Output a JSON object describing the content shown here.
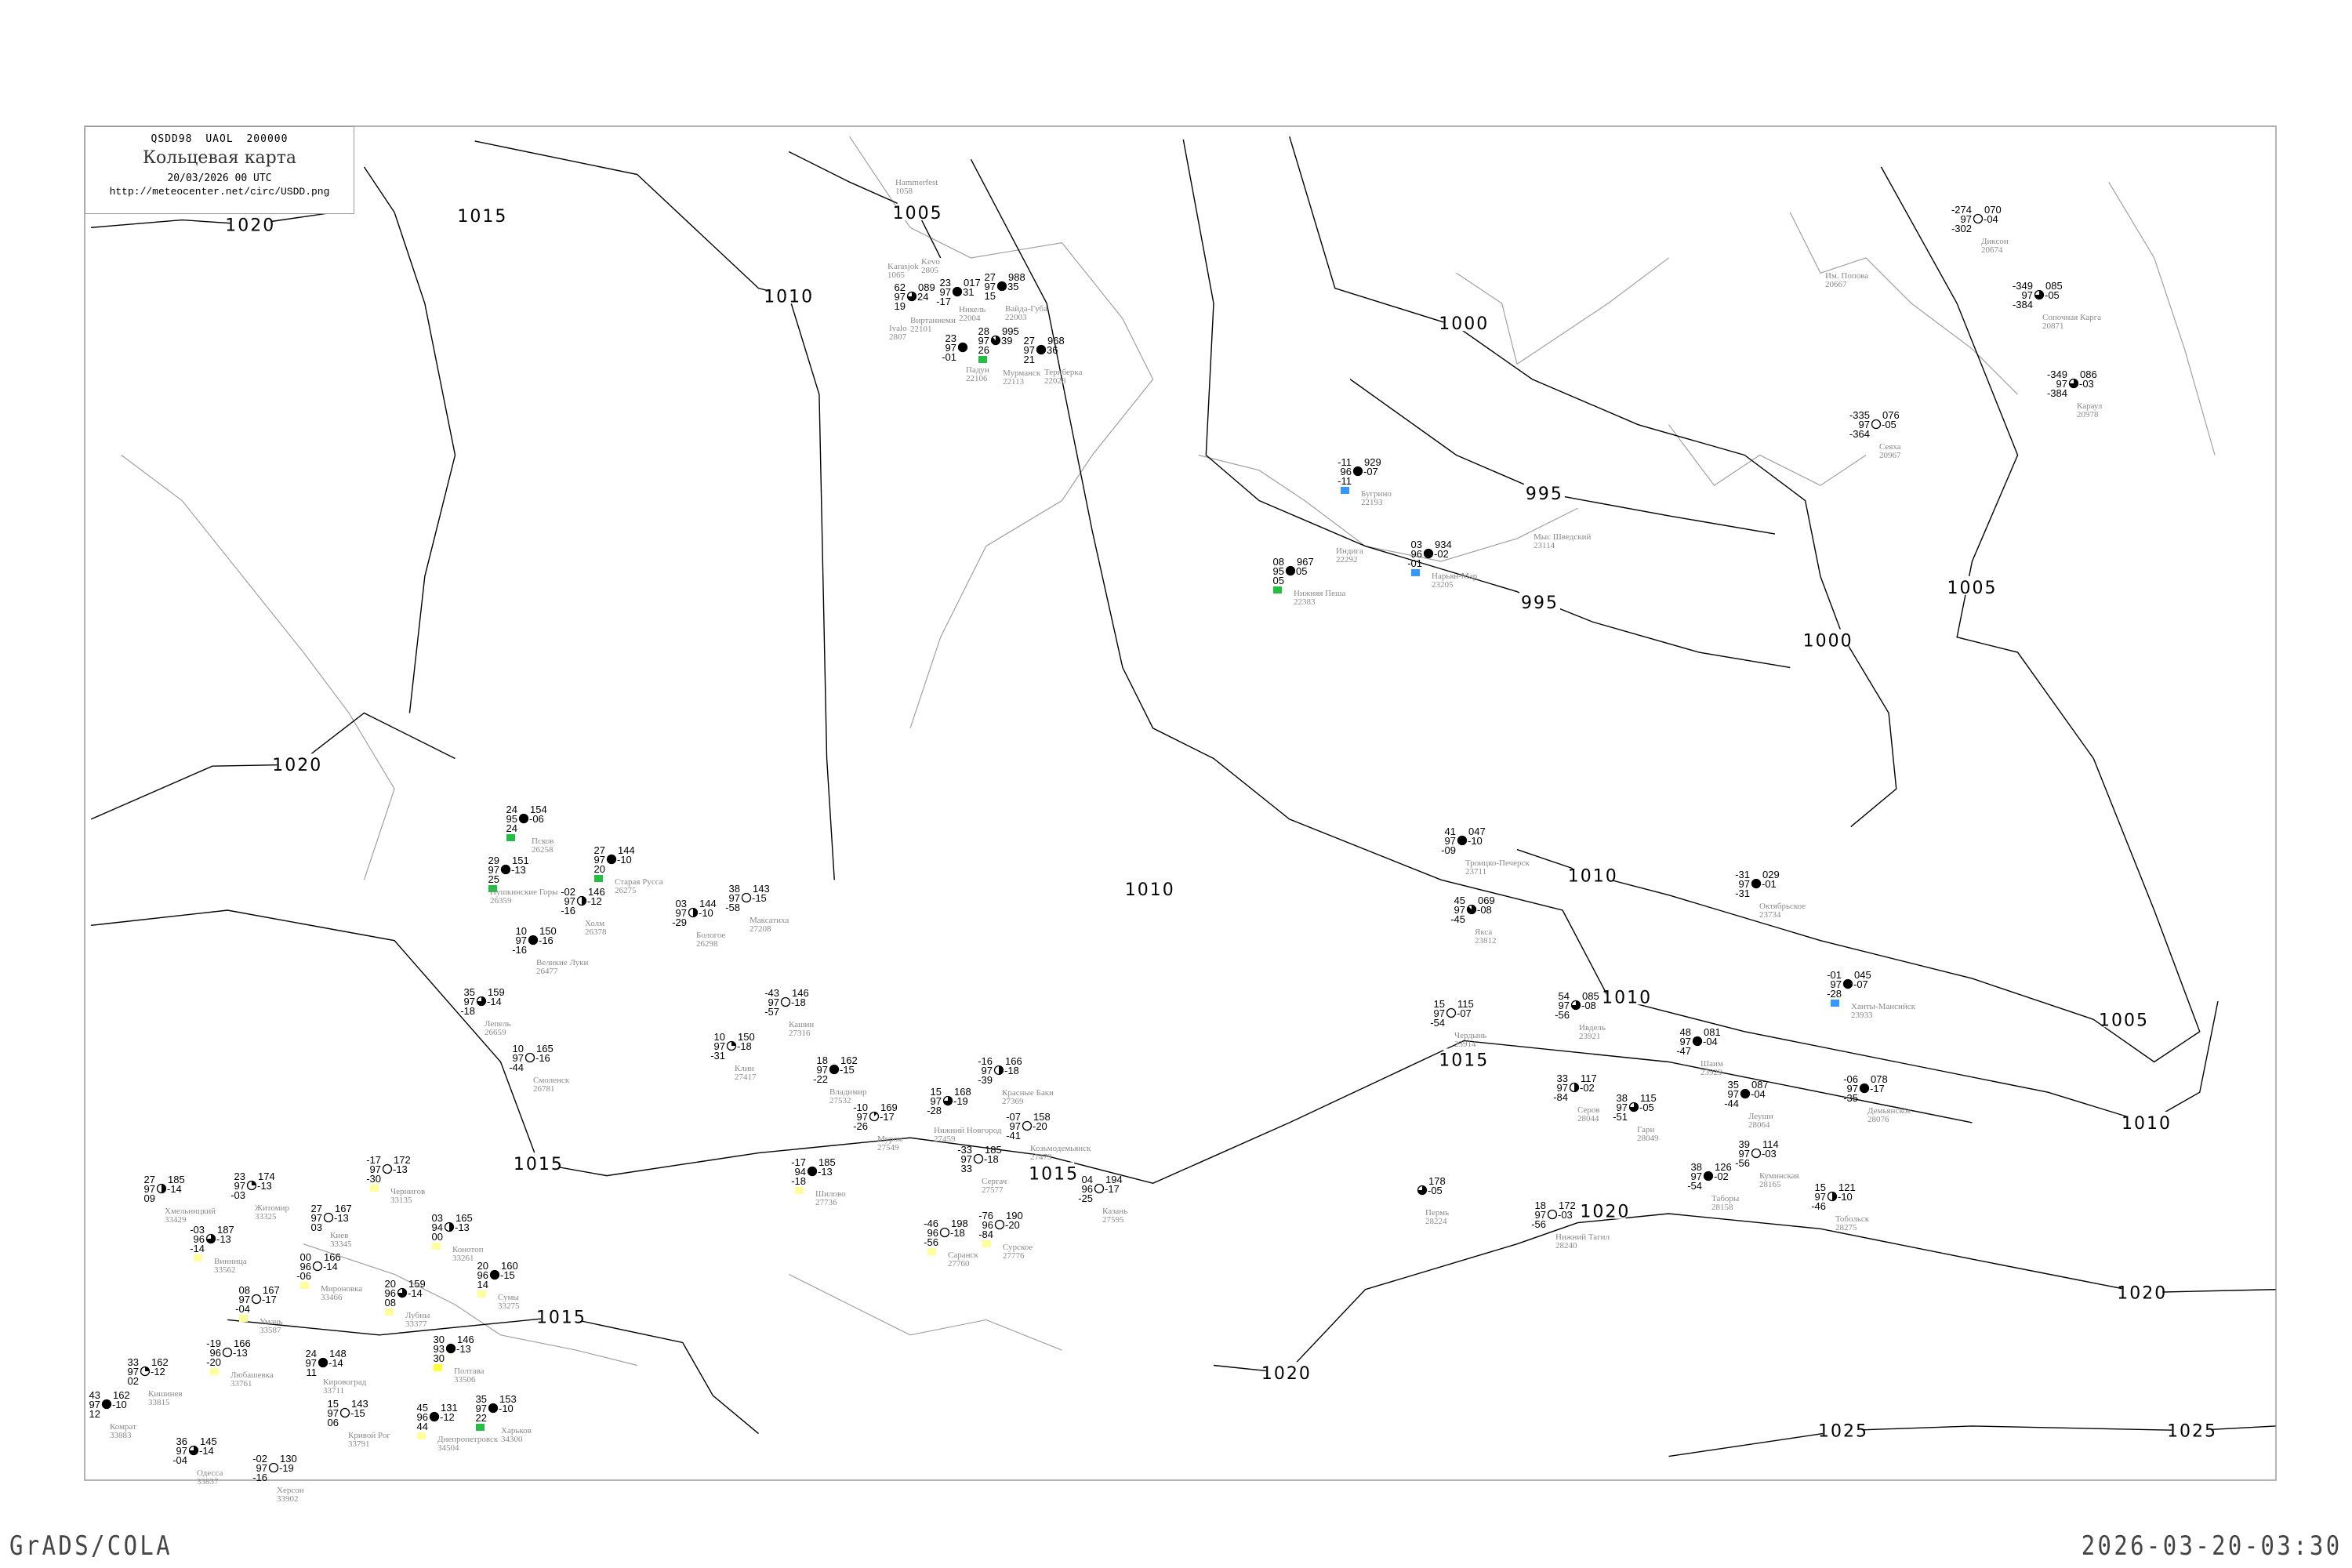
{
  "header": {
    "code_line": "QSDD98  UAOL  200000",
    "title": "Кольцевая карта",
    "datetime": "20/03/2026 00 UTC",
    "url": "http://meteocenter.net/circ/USDD.png"
  },
  "footer": {
    "left": "GrADS/COLA",
    "right": "2026-03-20-03:30"
  },
  "colors": {
    "isobar": "#000000",
    "coast": "#a0a0a0",
    "station_label": "#8a8a8a",
    "marker_blue": "#3399ff",
    "marker_green": "#22c040",
    "marker_yellow": "#ffff33",
    "marker_lightyellow": "#ffff99"
  },
  "isobars": [
    {
      "label": "1020"
    },
    {
      "label": "1015"
    },
    {
      "label": "1010"
    },
    {
      "label": "1005"
    },
    {
      "label": "1000"
    },
    {
      "label": "995"
    },
    {
      "label": "995"
    },
    {
      "label": "1000"
    },
    {
      "label": "1005"
    },
    {
      "label": "1020"
    },
    {
      "label": "1010"
    },
    {
      "label": "1010"
    },
    {
      "label": "1010"
    },
    {
      "label": "1015"
    },
    {
      "label": "1005"
    },
    {
      "label": "1010"
    },
    {
      "label": "1015"
    },
    {
      "label": "1015"
    },
    {
      "label": "1020"
    },
    {
      "label": "1020"
    },
    {
      "label": "1025"
    },
    {
      "label": "1025"
    },
    {
      "label": "1020"
    },
    {
      "label": "1015"
    }
  ],
  "stations": [
    {
      "name": "Бугрино",
      "id": "22193",
      "temp": "-11",
      "vis": "96",
      "dew": "-11",
      "pressure": "929",
      "tendency": "-07",
      "cloud": 1,
      "marker": "blue"
    },
    {
      "name": "Нарьян-Мар",
      "id": "23205",
      "temp": "03",
      "vis": "96",
      "dew": "-01",
      "pressure": "934",
      "tendency": "-02",
      "cloud": 1,
      "marker": "blue"
    },
    {
      "name": "Нижняя Пеша",
      "id": "22383",
      "temp": "08",
      "vis": "95",
      "dew": "05",
      "pressure": "967",
      "tendency": "05",
      "cloud": 1,
      "marker": "green"
    },
    {
      "name": "Нижний Новгород",
      "id": "27459",
      "temp": "15",
      "vis": "97",
      "dew": "-28",
      "pressure": "168",
      "tendency": "-19",
      "cloud": 0.75
    },
    {
      "name": "Владимир",
      "id": "27532",
      "temp": "18",
      "vis": "97",
      "dew": "-22",
      "pressure": "162",
      "tendency": "-15",
      "cloud": 1
    },
    {
      "name": "Муром",
      "id": "27549",
      "temp": "-10",
      "vis": "97",
      "dew": "-26",
      "pressure": "169",
      "tendency": "-17",
      "cloud": 0.125
    },
    {
      "name": "Красные Баки",
      "id": "27369",
      "temp": "-16",
      "vis": "97",
      "dew": "-39",
      "pressure": "166",
      "tendency": "-18",
      "cloud": 0.5
    },
    {
      "name": "Сергач",
      "id": "27577",
      "temp": "-33",
      "vis": "97",
      "dew": "33",
      "pressure": "185",
      "tendency": "-18",
      "cloud": 0
    },
    {
      "name": "Казань",
      "id": "27595",
      "temp": "04",
      "vis": "96",
      "dew": "-25",
      "pressure": "194",
      "tendency": "-17",
      "cloud": 0
    },
    {
      "name": "Саранск",
      "id": "27760",
      "temp": "-46",
      "vis": "96",
      "dew": "-56",
      "pressure": "198",
      "tendency": "-18",
      "cloud": 0,
      "marker": "lightyellow"
    },
    {
      "name": "Сурское",
      "id": "27776",
      "temp": "-76",
      "vis": "96",
      "dew": "-84",
      "pressure": "190",
      "tendency": "-20",
      "cloud": 0,
      "marker": "lightyellow"
    },
    {
      "name": "Козьмодемьянск",
      "id": "27479",
      "temp": "-07",
      "vis": "97",
      "dew": "-41",
      "pressure": "158",
      "tendency": "-20",
      "cloud": 0
    },
    {
      "name": "Шилово",
      "id": "27736",
      "temp": "-17",
      "vis": "94",
      "dew": "-18",
      "pressure": "185",
      "tendency": "-13",
      "cloud": 1,
      "marker": "lightyellow"
    },
    {
      "name": "Диксон",
      "id": "20674",
      "temp": "-274",
      "vis": "97",
      "dew": "-302",
      "pressure": "070",
      "tendency": "-04",
      "cloud": 0
    },
    {
      "name": "Сопочная Карга",
      "id": "20871",
      "temp": "-349",
      "vis": "97",
      "dew": "-384",
      "pressure": "085",
      "tendency": "-05",
      "cloud": 0.75
    },
    {
      "name": "Караул",
      "id": "20978",
      "temp": "-349",
      "vis": "97",
      "dew": "-384",
      "pressure": "086",
      "tendency": "-03",
      "cloud": 0.75
    },
    {
      "name": "Сеяха",
      "id": "20967",
      "temp": "-335",
      "vis": "97",
      "dew": "-364",
      "pressure": "076",
      "tendency": "-05",
      "cloud": 0
    },
    {
      "name": "Мурманск",
      "id": "22113",
      "temp": "28",
      "vis": "97",
      "dew": "26",
      "pressure": "995",
      "tendency": "39",
      "cloud": 0.875,
      "marker": "green"
    },
    {
      "name": "Териберка",
      "id": "22028",
      "temp": "27",
      "vis": "97",
      "dew": "21",
      "pressure": "968",
      "tendency": "36",
      "cloud": 1
    },
    {
      "name": "Никель",
      "id": "22004",
      "temp": "23",
      "vis": "97",
      "dew": "-17",
      "pressure": "017",
      "tendency": "31",
      "cloud": 1
    },
    {
      "name": "Вайда-Губа",
      "id": "22003",
      "temp": "27",
      "vis": "97",
      "dew": "15",
      "pressure": "988",
      "tendency": "35",
      "cloud": 1
    },
    {
      "name": "Виртаниеми",
      "id": "22101",
      "temp": "62",
      "vis": "97",
      "dew": "19",
      "pressure": "089",
      "tendency": "24",
      "cloud": 0.75
    },
    {
      "name": "Падун",
      "id": "22106",
      "temp": "23",
      "vis": "97",
      "dew": "-01",
      "pressure": "",
      "tendency": "",
      "cloud": 1
    },
    {
      "name": "Ханты-Мансийск",
      "id": "23933",
      "temp": "-01",
      "vis": "97",
      "dew": "-28",
      "pressure": "045",
      "tendency": "-07",
      "cloud": 1,
      "marker": "blue"
    },
    {
      "name": "Октябрьское",
      "id": "23734",
      "temp": "-31",
      "vis": "97",
      "dew": "-31",
      "pressure": "029",
      "tendency": "-01",
      "cloud": 1
    },
    {
      "name": "Троицко-Печерск",
      "id": "23711",
      "temp": "41",
      "vis": "97",
      "dew": "-09",
      "pressure": "047",
      "tendency": "-10",
      "cloud": 1
    },
    {
      "name": "Якса",
      "id": "23812",
      "temp": "45",
      "vis": "97",
      "dew": "-45",
      "pressure": "069",
      "tendency": "-08",
      "cloud": 0.875
    },
    {
      "name": "Чердынь",
      "id": "23914",
      "temp": "15",
      "vis": "97",
      "dew": "-54",
      "pressure": "115",
      "tendency": "-07",
      "cloud": 0
    },
    {
      "name": "Ивдель",
      "id": "23921",
      "temp": "54",
      "vis": "97",
      "dew": "-56",
      "pressure": "085",
      "tendency": "-08",
      "cloud": 0.75
    },
    {
      "name": "Шаим",
      "id": "23929",
      "temp": "48",
      "vis": "97",
      "dew": "-47",
      "pressure": "081",
      "tendency": "-04",
      "cloud": 1
    },
    {
      "name": "Леуши",
      "id": "28064",
      "temp": "35",
      "vis": "97",
      "dew": "-44",
      "pressure": "087",
      "tendency": "-04",
      "cloud": 1
    },
    {
      "name": "Серов",
      "id": "28044",
      "temp": "33",
      "vis": "97",
      "dew": "-84",
      "pressure": "117",
      "tendency": "-02",
      "cloud": 0.5
    },
    {
      "name": "Гари",
      "id": "28049",
      "temp": "38",
      "vis": "97",
      "dew": "-51",
      "pressure": "115",
      "tendency": "-05",
      "cloud": 0.75
    },
    {
      "name": "Демьянское",
      "id": "28076",
      "temp": "-06",
      "vis": "97",
      "dew": "-35",
      "pressure": "078",
      "tendency": "-17",
      "cloud": 1
    },
    {
      "name": "Тобольск",
      "id": "28275",
      "temp": "15",
      "vis": "97",
      "dew": "-46",
      "pressure": "121",
      "tendency": "-10",
      "cloud": 0.5
    },
    {
      "name": "Таборы",
      "id": "28158",
      "temp": "38",
      "vis": "97",
      "dew": "-54",
      "pressure": "126",
      "tendency": "-02",
      "cloud": 1
    },
    {
      "name": "Куминская",
      "id": "28165",
      "temp": "39",
      "vis": "97",
      "dew": "-56",
      "pressure": "114",
      "tendency": "-03",
      "cloud": 0
    },
    {
      "name": "Нижний Тагил",
      "id": "28240",
      "temp": "18",
      "vis": "97",
      "dew": "-56",
      "pressure": "172",
      "tendency": "-03",
      "cloud": 0
    },
    {
      "name": "Пермь",
      "id": "28224",
      "temp": "",
      "vis": "",
      "dew": "",
      "pressure": "178",
      "tendency": "-05",
      "cloud": 0.75
    },
    {
      "name": "Псков",
      "id": "26258",
      "temp": "24",
      "vis": "95",
      "dew": "24",
      "pressure": "154",
      "tendency": "-06",
      "cloud": 1,
      "marker": "green"
    },
    {
      "name": "Пушкинские Горы",
      "id": "26359",
      "temp": "29",
      "vis": "97",
      "dew": "25",
      "pressure": "151",
      "tendency": "-13",
      "cloud": 1,
      "marker": "green"
    },
    {
      "name": "Великие Луки",
      "id": "26477",
      "temp": "10",
      "vis": "97",
      "dew": "-16",
      "pressure": "150",
      "tendency": "-16",
      "cloud": 1
    },
    {
      "name": "Лепель",
      "id": "26659",
      "temp": "35",
      "vis": "97",
      "dew": "-18",
      "pressure": "159",
      "tendency": "-14",
      "cloud": 0.75
    },
    {
      "name": "Смоленск",
      "id": "26781",
      "temp": "10",
      "vis": "97",
      "dew": "-44",
      "pressure": "165",
      "tendency": "-16",
      "cloud": 0
    },
    {
      "name": "Холм",
      "id": "26378",
      "temp": "-02",
      "vis": "97",
      "dew": "-16",
      "pressure": "146",
      "tendency": "-12",
      "cloud": 0.5
    },
    {
      "name": "Старая Русса",
      "id": "26275",
      "temp": "27",
      "vis": "97",
      "dew": "20",
      "pressure": "144",
      "tendency": "-10",
      "cloud": 1,
      "marker": "green"
    },
    {
      "name": "Бологое",
      "id": "26298",
      "temp": "03",
      "vis": "97",
      "dew": "-29",
      "pressure": "144",
      "tendency": "-10",
      "cloud": 0.5
    },
    {
      "name": "Клин",
      "id": "27417",
      "temp": "10",
      "vis": "97",
      "dew": "-31",
      "pressure": "150",
      "tendency": "-18",
      "cloud": 0.25
    },
    {
      "name": "Максатиха",
      "id": "27208",
      "temp": "38",
      "vis": "97",
      "dew": "-58",
      "pressure": "143",
      "tendency": "-15",
      "cloud": 0
    },
    {
      "name": "Кашин",
      "id": "27316",
      "temp": "-43",
      "vis": "97",
      "dew": "-57",
      "pressure": "146",
      "tendency": "-18",
      "cloud": 0
    },
    {
      "name": "Киев",
      "id": "33345",
      "temp": "27",
      "vis": "97",
      "dew": "03",
      "pressure": "167",
      "tendency": "-13",
      "cloud": 0
    },
    {
      "name": "Винница",
      "id": "33562",
      "temp": "-03",
      "vis": "96",
      "dew": "-14",
      "pressure": "187",
      "tendency": "-13",
      "cloud": 0.75,
      "marker": "lightyellow"
    },
    {
      "name": "Житомир",
      "id": "33325",
      "temp": "23",
      "vis": "97",
      "dew": "-03",
      "pressure": "174",
      "tendency": "-13",
      "cloud": 0.25
    },
    {
      "name": "Хмельницкий",
      "id": "33429",
      "temp": "27",
      "vis": "97",
      "dew": "09",
      "pressure": "185",
      "tendency": "-14",
      "cloud": 0.5
    },
    {
      "name": "Кишинев",
      "id": "33815",
      "temp": "33",
      "vis": "97",
      "dew": "02",
      "pressure": "162",
      "tendency": "-12",
      "cloud": 0.25
    },
    {
      "name": "Одесса",
      "id": "33837",
      "temp": "36",
      "vis": "97",
      "dew": "-04",
      "pressure": "145",
      "tendency": "-14",
      "cloud": 0.75
    },
    {
      "name": "Херсон",
      "id": "33902",
      "temp": "-02",
      "vis": "97",
      "dew": "-16",
      "pressure": "130",
      "tendency": "-19",
      "cloud": 0
    },
    {
      "name": "Кировоград",
      "id": "33711",
      "temp": "24",
      "vis": "97",
      "dew": "11",
      "pressure": "148",
      "tendency": "-14",
      "cloud": 1
    },
    {
      "name": "Кривой Рог",
      "id": "33791",
      "temp": "15",
      "vis": "97",
      "dew": "06",
      "pressure": "143",
      "tendency": "-15",
      "cloud": 0
    },
    {
      "name": "Днепропетровск",
      "id": "34504",
      "temp": "45",
      "vis": "96",
      "dew": "44",
      "pressure": "131",
      "tendency": "-12",
      "cloud": 1,
      "marker": "lightyellow"
    },
    {
      "name": "Полтава",
      "id": "33506",
      "temp": "30",
      "vis": "93",
      "dew": "30",
      "pressure": "146",
      "tendency": "-13",
      "cloud": 1,
      "marker": "yellow"
    },
    {
      "name": "Конотоп",
      "id": "33261",
      "temp": "03",
      "vis": "94",
      "dew": "00",
      "pressure": "165",
      "tendency": "-13",
      "cloud": 0.5,
      "marker": "lightyellow"
    },
    {
      "name": "Сумы",
      "id": "33275",
      "temp": "20",
      "vis": "96",
      "dew": "14",
      "pressure": "160",
      "tendency": "-15",
      "cloud": 1,
      "marker": "lightyellow"
    },
    {
      "name": "Чернигов",
      "id": "33135",
      "temp": "-17",
      "vis": "97",
      "dew": "-30",
      "pressure": "172",
      "tendency": "-13",
      "cloud": 0,
      "marker": "lightyellow"
    },
    {
      "name": "Умань",
      "id": "33587",
      "temp": "08",
      "vis": "97",
      "dew": "-04",
      "pressure": "167",
      "tendency": "-17",
      "cloud": 0,
      "marker": "lightyellow"
    },
    {
      "name": "Любашевка",
      "id": "33761",
      "temp": "-19",
      "vis": "96",
      "dew": "-20",
      "pressure": "166",
      "tendency": "-13",
      "cloud": 0,
      "marker": "lightyellow"
    },
    {
      "name": "Комрат",
      "id": "33883",
      "temp": "43",
      "vis": "97",
      "dew": "12",
      "pressure": "162",
      "tendency": "-10",
      "cloud": 1
    },
    {
      "name": "Харьков",
      "id": "34300",
      "temp": "35",
      "vis": "97",
      "dew": "22",
      "pressure": "153",
      "tendency": "-10",
      "cloud": 1,
      "marker": "green"
    },
    {
      "name": "Мироновка",
      "id": "33466",
      "temp": "00",
      "vis": "96",
      "dew": "-06",
      "pressure": "166",
      "tendency": "-14",
      "cloud": 0,
      "marker": "lightyellow"
    },
    {
      "name": "Лубны",
      "id": "33377",
      "temp": "20",
      "vis": "96",
      "dew": "08",
      "pressure": "159",
      "tendency": "-14",
      "cloud": 0.75,
      "marker": "lightyellow"
    }
  ],
  "labels_only": [
    {
      "name": "Hammerfest",
      "id": "1058"
    },
    {
      "name": "Karasjok",
      "id": "1065"
    },
    {
      "name": "Kevo",
      "id": "2805"
    },
    {
      "name": "Ivalo",
      "id": "2807"
    },
    {
      "name": "Им. Попова",
      "id": "20667"
    },
    {
      "name": "Индига",
      "id": "22292"
    },
    {
      "name": "Мыс Шведский",
      "id": "23114"
    }
  ]
}
